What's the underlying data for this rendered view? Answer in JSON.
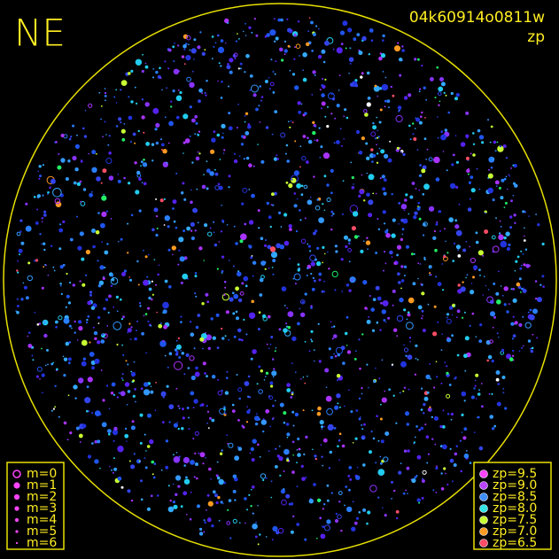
{
  "title": "NE",
  "image_id": "04k60914o0811w",
  "color_label": "zp",
  "magnitude_legend": [
    "m=0",
    "m=1",
    "m=2",
    "m=3",
    "m=4",
    "m=5",
    "m=6"
  ],
  "zp_legend": [
    {
      "label": "zp=9.5",
      "color": "#ff44ff"
    },
    {
      "label": "zp=9.0",
      "color": "#bb44ff"
    },
    {
      "label": "zp=8.5",
      "color": "#3f8fff"
    },
    {
      "label": "zp=8.0",
      "color": "#33e5e5"
    },
    {
      "label": "zp=7.5",
      "color": "#c8ff33"
    },
    {
      "label": "zp=7.0",
      "color": "#ff9a22"
    },
    {
      "label": "zp=6.5",
      "color": "#ff4d66"
    }
  ]
}
